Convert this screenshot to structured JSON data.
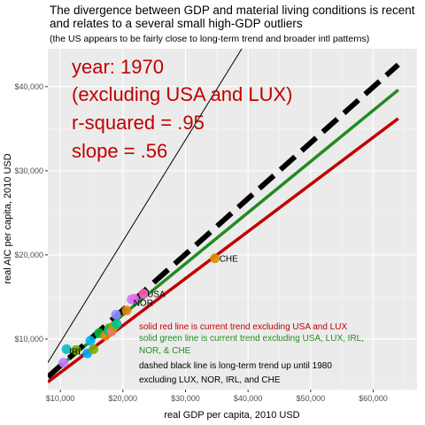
{
  "chart_data": {
    "type": "scatter",
    "title": "The divergence between GDP and material living conditions is recent and relates to a several small high-GDP outliers",
    "subtitle": "(the US appears to be fairly close to long-term trend and broader intl patterns)",
    "xlabel": "real GDP per capita, 2010 USD",
    "ylabel": "real AIC per capita, 2010 USD",
    "xlim": [
      8000,
      67000
    ],
    "ylim": [
      4000,
      44500
    ],
    "x_ticks": [
      10000,
      20000,
      30000,
      40000,
      50000,
      60000
    ],
    "x_tick_labels": [
      "$10,000",
      "$20,000",
      "$30,000",
      "$40,000",
      "$50,000",
      "$60,000"
    ],
    "y_ticks": [
      10000,
      20000,
      30000,
      40000
    ],
    "y_tick_labels": [
      "$10,000",
      "$20,000",
      "$30,000",
      "$40,000"
    ],
    "grid": true,
    "annotations": [
      "year: 1970",
      "(excluding USA and LUX)",
      "r-squared = .95",
      "slope = .56"
    ],
    "notes": [
      {
        "text": "solid red line is current trend excluding USA and LUX",
        "color": "#c00000"
      },
      {
        "text": "solid green line is current trend excluding USA, LUX, IRL,",
        "color": "#228b22"
      },
      {
        "text": "NOR, & CHE",
        "color": "#228b22"
      },
      {
        "text": "dashed black line is long-term trend up until 1980",
        "color": "#000000"
      },
      {
        "text": "excluding LUX, NOR, IRL, and CHE",
        "color": "#000000"
      }
    ],
    "lines": [
      {
        "style": "thin-black",
        "x": [
          8000,
          39000
        ],
        "y": [
          7200,
          44500
        ]
      },
      {
        "style": "red",
        "x": [
          8000,
          64000
        ],
        "y": [
          4900,
          36200
        ]
      },
      {
        "style": "green",
        "x": [
          8000,
          64000
        ],
        "y": [
          5600,
          39600
        ]
      },
      {
        "style": "dashed-black",
        "x": [
          8000,
          64000
        ],
        "y": [
          5500,
          42600
        ]
      }
    ],
    "points": [
      {
        "x": 10500,
        "y": 7200,
        "color": "#c77cff",
        "label": ""
      },
      {
        "x": 11000,
        "y": 8800,
        "color": "#00bfc4",
        "label": "IRL"
      },
      {
        "x": 12500,
        "y": 8700,
        "color": "#7cae00",
        "label": ""
      },
      {
        "x": 14300,
        "y": 8300,
        "color": "#00a9ff",
        "label": ""
      },
      {
        "x": 14800,
        "y": 9800,
        "color": "#00b4f0",
        "label": ""
      },
      {
        "x": 15300,
        "y": 8800,
        "color": "#7cae00",
        "label": ""
      },
      {
        "x": 16200,
        "y": 10700,
        "color": "#00ba38",
        "label": ""
      },
      {
        "x": 17200,
        "y": 10400,
        "color": "#e68613",
        "label": ""
      },
      {
        "x": 17800,
        "y": 11300,
        "color": "#5bb300",
        "label": ""
      },
      {
        "x": 17700,
        "y": 11000,
        "color": "#00be67",
        "label": ""
      },
      {
        "x": 18200,
        "y": 10900,
        "color": "#f8766d",
        "label": ""
      },
      {
        "x": 18600,
        "y": 11500,
        "color": "#aba300",
        "label": ""
      },
      {
        "x": 18900,
        "y": 12900,
        "color": "#9590ff",
        "label": ""
      },
      {
        "x": 19000,
        "y": 11800,
        "color": "#00c19a",
        "label": ""
      },
      {
        "x": 20600,
        "y": 13400,
        "color": "#e68613",
        "label": ""
      },
      {
        "x": 21400,
        "y": 14700,
        "color": "#c77cff",
        "label": "NOR"
      },
      {
        "x": 21800,
        "y": 14800,
        "color": "#ed68ed",
        "label": ""
      },
      {
        "x": 23300,
        "y": 15400,
        "color": "#ff61c3",
        "label": "USA"
      },
      {
        "x": 34700,
        "y": 19600,
        "color": "#d89000",
        "label": "CHE"
      }
    ]
  }
}
